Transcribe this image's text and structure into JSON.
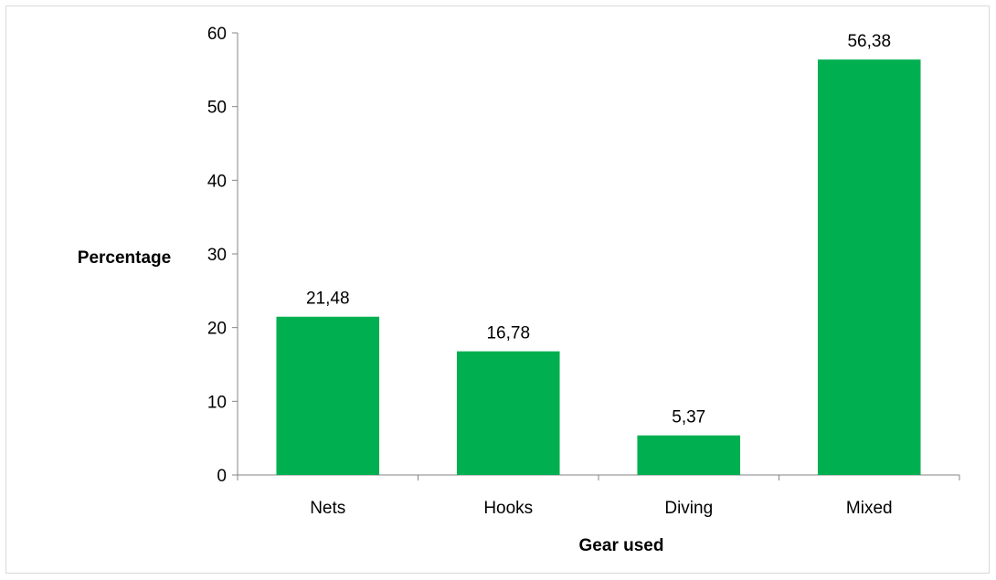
{
  "chart_data": {
    "type": "bar",
    "title": "",
    "xlabel": "Gear used",
    "ylabel": "Percentage",
    "categories": [
      "Nets",
      "Hooks",
      "Diving",
      "Mixed"
    ],
    "values": [
      21.48,
      16.78,
      5.37,
      56.38
    ],
    "data_labels": [
      "21,48",
      "16,78",
      "5,37",
      "56,38"
    ],
    "ylim": [
      0,
      60
    ],
    "yticks": [
      0,
      10,
      20,
      30,
      40,
      50,
      60
    ],
    "grid": false,
    "legend": "none",
    "bar_color": "#00b050"
  }
}
